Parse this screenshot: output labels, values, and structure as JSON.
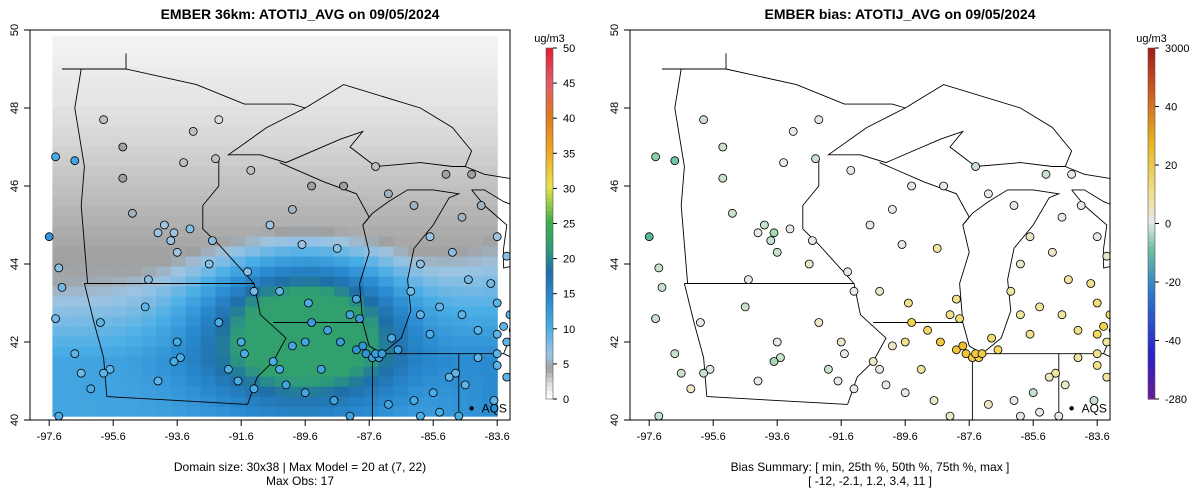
{
  "chart_data": [
    {
      "type": "heatmap",
      "title": "EMBER 36km: ATOTIJ_AVG on 09/05/2024",
      "colorbar_unit": "ug/m3",
      "colorbar_ticks": [
        "0",
        "5",
        "10",
        "15",
        "20",
        "25",
        "30",
        "35",
        "40",
        "45",
        "50"
      ],
      "colorbar_range": [
        0,
        50
      ],
      "x_ticks": [
        "-97.6",
        "-95.6",
        "-93.6",
        "-91.6",
        "-89.6",
        "-87.6",
        "-85.6",
        "-83.6"
      ],
      "y_ticks": [
        "40",
        "42",
        "44",
        "46",
        "48",
        "50"
      ],
      "xlim": [
        -98.2,
        -83.2
      ],
      "ylim": [
        40,
        50
      ],
      "marker_label": "AQS",
      "marker_lon": -84.4,
      "marker_lat": 40.3,
      "caption_line1": "Domain size: 30x38 | Max Model = 20 at (7, 22)",
      "caption_line2": "Max Obs: 17",
      "grid": false
    },
    {
      "type": "scatter",
      "title": "EMBER bias: ATOTIJ_AVG on 09/05/2024",
      "colorbar_unit": "ug/m3",
      "colorbar_ticks": [
        "3000",
        "40",
        "20",
        "0",
        "-20",
        "-40",
        "-280"
      ],
      "x_ticks": [
        "-97.6",
        "-95.6",
        "-93.6",
        "-91.6",
        "-89.6",
        "-87.6",
        "-85.6",
        "-83.6"
      ],
      "y_ticks": [
        "40",
        "42",
        "44",
        "46",
        "48",
        "50"
      ],
      "xlim": [
        -98.2,
        -83.2
      ],
      "ylim": [
        40,
        50
      ],
      "marker_label": "AQS",
      "marker_lon": -84.4,
      "marker_lat": 40.3,
      "caption_line1": "Bias Summary: [ min, 25th %, 50th %, 75th %, max ]",
      "caption_line2": "[ -12,  -2.1,  1.2,  3.4,  11 ]",
      "grid": false
    }
  ],
  "stations": [
    [
      -97.4,
      46.75,
      10,
      -3
    ],
    [
      -96.8,
      46.65,
      11,
      -4
    ],
    [
      -97.6,
      44.7,
      13,
      -5
    ],
    [
      -97.3,
      43.9,
      7,
      -1
    ],
    [
      -97.2,
      43.4,
      8,
      -1
    ],
    [
      -97.4,
      42.6,
      8,
      -1
    ],
    [
      -96.8,
      41.7,
      9,
      -1
    ],
    [
      -96.6,
      41.2,
      8,
      -1
    ],
    [
      -96.3,
      40.8,
      10,
      1
    ],
    [
      -97.3,
      40.1,
      10,
      -1
    ],
    [
      -95.9,
      47.7,
      3,
      -1
    ],
    [
      -95.3,
      47.0,
      4,
      -1
    ],
    [
      -95.3,
      46.2,
      4,
      -1
    ],
    [
      -95.0,
      45.3,
      5,
      -1
    ],
    [
      -94.2,
      44.8,
      6,
      0
    ],
    [
      -94.0,
      45.0,
      6,
      -1
    ],
    [
      -93.7,
      44.8,
      6,
      -2
    ],
    [
      -93.8,
      44.6,
      6,
      -1
    ],
    [
      -93.2,
      44.9,
      7,
      0
    ],
    [
      -93.6,
      44.3,
      6,
      -1
    ],
    [
      -94.5,
      43.6,
      7,
      0
    ],
    [
      -92.5,
      44.6,
      7,
      0
    ],
    [
      -92.6,
      44.0,
      7,
      1
    ],
    [
      -91.4,
      43.8,
      7,
      0
    ],
    [
      -93.1,
      47.4,
      3,
      0
    ],
    [
      -92.3,
      47.7,
      2,
      0
    ],
    [
      -92.4,
      46.7,
      3,
      -1
    ],
    [
      -91.3,
      46.4,
      3,
      0
    ],
    [
      -93.4,
      46.6,
      3,
      0
    ],
    [
      -90.7,
      45.0,
      6,
      0
    ],
    [
      -90.0,
      45.4,
      5,
      0
    ],
    [
      -89.4,
      46.0,
      4,
      0
    ],
    [
      -88.6,
      44.4,
      7,
      2
    ],
    [
      -89.7,
      44.5,
      6,
      0
    ],
    [
      -89.5,
      43.0,
      10,
      3
    ],
    [
      -90.4,
      43.3,
      9,
      1
    ],
    [
      -91.2,
      43.3,
      8,
      0
    ],
    [
      -88.0,
      43.1,
      11,
      3
    ],
    [
      -87.9,
      42.6,
      12,
      4
    ],
    [
      -88.2,
      42.7,
      11,
      3
    ],
    [
      -88.9,
      42.3,
      11,
      5
    ],
    [
      -89.4,
      42.5,
      12,
      6
    ],
    [
      -88.5,
      42.0,
      12,
      7
    ],
    [
      -88.0,
      41.8,
      13,
      8
    ],
    [
      -87.8,
      41.9,
      13,
      9
    ],
    [
      -87.7,
      41.7,
      13,
      8
    ],
    [
      -87.5,
      41.6,
      12,
      7
    ],
    [
      -87.3,
      41.6,
      12,
      6
    ],
    [
      -87.4,
      41.7,
      12,
      7
    ],
    [
      -87.2,
      41.7,
      12,
      7
    ],
    [
      -86.7,
      41.8,
      11,
      5
    ],
    [
      -86.9,
      42.1,
      10,
      4
    ],
    [
      -85.7,
      42.2,
      10,
      3
    ],
    [
      -86.0,
      42.7,
      9,
      2
    ],
    [
      -85.4,
      42.9,
      9,
      2
    ],
    [
      -84.7,
      42.7,
      9,
      2
    ],
    [
      -84.2,
      42.3,
      9,
      3
    ],
    [
      -83.6,
      42.2,
      9,
      5
    ],
    [
      -83.4,
      42.4,
      9,
      6
    ],
    [
      -83.1,
      42.3,
      9,
      7
    ],
    [
      -83.0,
      42.5,
      9,
      6
    ],
    [
      -83.2,
      42.7,
      9,
      5
    ],
    [
      -82.9,
      42.9,
      8,
      4
    ],
    [
      -83.6,
      43.0,
      9,
      4
    ],
    [
      -83.8,
      43.5,
      8,
      3
    ],
    [
      -84.5,
      43.6,
      8,
      2
    ],
    [
      -85.0,
      44.3,
      7,
      1
    ],
    [
      -85.7,
      44.7,
      6,
      1
    ],
    [
      -84.7,
      45.2,
      5,
      0
    ],
    [
      -84.1,
      45.5,
      5,
      0
    ],
    [
      -84.4,
      46.3,
      4,
      0
    ],
    [
      -85.2,
      46.3,
      4,
      -1
    ],
    [
      -87.4,
      46.5,
      3,
      -1
    ],
    [
      -88.4,
      46.0,
      4,
      0
    ],
    [
      -87.0,
      45.8,
      5,
      0
    ],
    [
      -86.0,
      44.0,
      7,
      1
    ],
    [
      -86.3,
      43.3,
      8,
      2
    ],
    [
      -83.3,
      44.2,
      7,
      1
    ],
    [
      -83.6,
      44.7,
      6,
      0
    ],
    [
      -86.2,
      45.5,
      5,
      0
    ],
    [
      -94.6,
      42.9,
      9,
      -1
    ],
    [
      -93.6,
      42.0,
      10,
      0
    ],
    [
      -93.5,
      41.6,
      10,
      -1
    ],
    [
      -93.7,
      41.5,
      10,
      -2
    ],
    [
      -92.3,
      42.5,
      10,
      1
    ],
    [
      -91.6,
      42.0,
      10,
      1
    ],
    [
      -91.5,
      41.7,
      10,
      0
    ],
    [
      -90.6,
      41.5,
      10,
      1
    ],
    [
      -90.4,
      41.3,
      10,
      0
    ],
    [
      -92.0,
      41.3,
      10,
      -1
    ],
    [
      -91.2,
      40.8,
      10,
      0
    ],
    [
      -90.2,
      40.9,
      11,
      0
    ],
    [
      -89.6,
      40.7,
      11,
      0
    ],
    [
      -88.7,
      40.5,
      11,
      1
    ],
    [
      -88.2,
      40.1,
      11,
      1
    ],
    [
      -87.0,
      40.4,
      11,
      1
    ],
    [
      -86.2,
      40.5,
      10,
      0
    ],
    [
      -86.0,
      40.1,
      10,
      0
    ],
    [
      -85.4,
      40.2,
      10,
      0
    ],
    [
      -84.8,
      40.1,
      10,
      0
    ],
    [
      -85.6,
      40.7,
      10,
      -1
    ],
    [
      -84.6,
      40.9,
      9,
      1
    ],
    [
      -84.9,
      41.2,
      9,
      2
    ],
    [
      -85.1,
      41.1,
      9,
      1
    ],
    [
      -84.2,
      41.6,
      9,
      2
    ],
    [
      -83.6,
      41.7,
      9,
      3
    ],
    [
      -83.6,
      41.4,
      9,
      3
    ],
    [
      -83.3,
      41.1,
      9,
      2
    ],
    [
      -83.7,
      40.5,
      9,
      -1
    ],
    [
      -83.3,
      42.0,
      9,
      2
    ],
    [
      -89.1,
      41.3,
      11,
      2
    ],
    [
      -89.6,
      42.0,
      11,
      3
    ],
    [
      -90.0,
      41.9,
      11,
      1
    ],
    [
      -91.7,
      41.0,
      10,
      0
    ],
    [
      -95.7,
      41.3,
      9,
      0
    ],
    [
      -95.9,
      41.2,
      9,
      -1
    ],
    [
      -96.0,
      42.5,
      9,
      0
    ],
    [
      -94.2,
      41.0,
      9,
      0
    ]
  ]
}
